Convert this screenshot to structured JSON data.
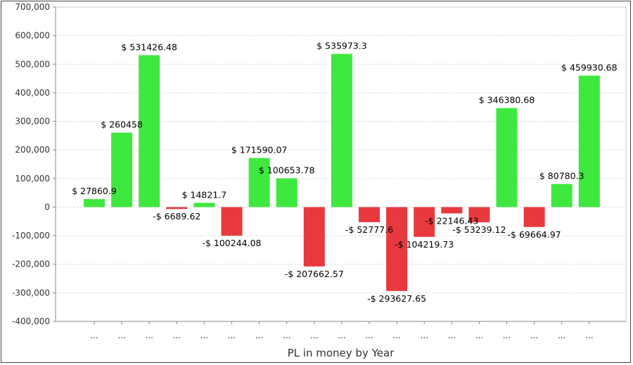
{
  "chart_data": {
    "type": "bar",
    "title": "",
    "xlabel": "PL in money by Year",
    "ylabel": "",
    "ylim": [
      -400000,
      700000
    ],
    "yticks": [
      -400000,
      -300000,
      -200000,
      -100000,
      0,
      100000,
      200000,
      300000,
      400000,
      500000,
      600000,
      700000
    ],
    "ytick_labels": [
      "-400,000",
      "-300,000",
      "-200,000",
      "-100,000",
      "0",
      "100,000",
      "200,000",
      "300,000",
      "400,000",
      "500,000",
      "600,000",
      "700,000"
    ],
    "grid": true,
    "legend": "none",
    "colors": {
      "positive": "#3fe83f",
      "negative": "#e8393f"
    },
    "categories": [
      "...",
      "...",
      "...",
      "...",
      "...",
      "...",
      "...",
      "...",
      "...",
      "...",
      "...",
      "...",
      "...",
      "...",
      "...",
      "...",
      "...",
      "...",
      "..."
    ],
    "values": [
      27860.9,
      260458,
      531426.48,
      -6689.62,
      14821.7,
      -100244.08,
      171590.07,
      100653.78,
      -207662.57,
      535973.3,
      -52777.6,
      -293627.65,
      -104219.73,
      -22146.43,
      -53239.12,
      346380.68,
      -69664.97,
      80780.3,
      459930.68
    ],
    "data_labels": [
      "$ 27860.9",
      "$ 260458",
      "$ 531426.48",
      "-$ 6689.62",
      "$ 14821.7",
      "-$ 100244.08",
      "$ 171590.07",
      "$ 100653.78",
      "-$ 207662.57",
      "$ 535973.3",
      "-$ 52777.6",
      "-$ 293627.65",
      "-$ 104219.73",
      "-$ 22146.43",
      "-$ 53239.12",
      "$ 346380.68",
      "-$ 69664.97",
      "$ 80780.3",
      "$ 459930.68"
    ]
  }
}
